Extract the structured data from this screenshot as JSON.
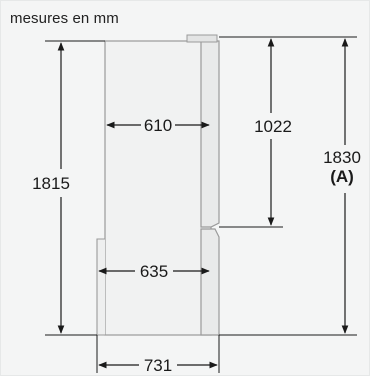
{
  "caption": "mesures en mm",
  "dimensions": {
    "width_top": "610",
    "width_bottom": "635",
    "width_overall": "731",
    "height_left": "1815",
    "height_door": "1022",
    "height_total": "1830",
    "height_total_note": "(A)"
  },
  "colors": {
    "background": "#f4f5f5",
    "line": "#1a1a1a",
    "outline": "#9a9a9a",
    "door": "#e9eaea"
  }
}
